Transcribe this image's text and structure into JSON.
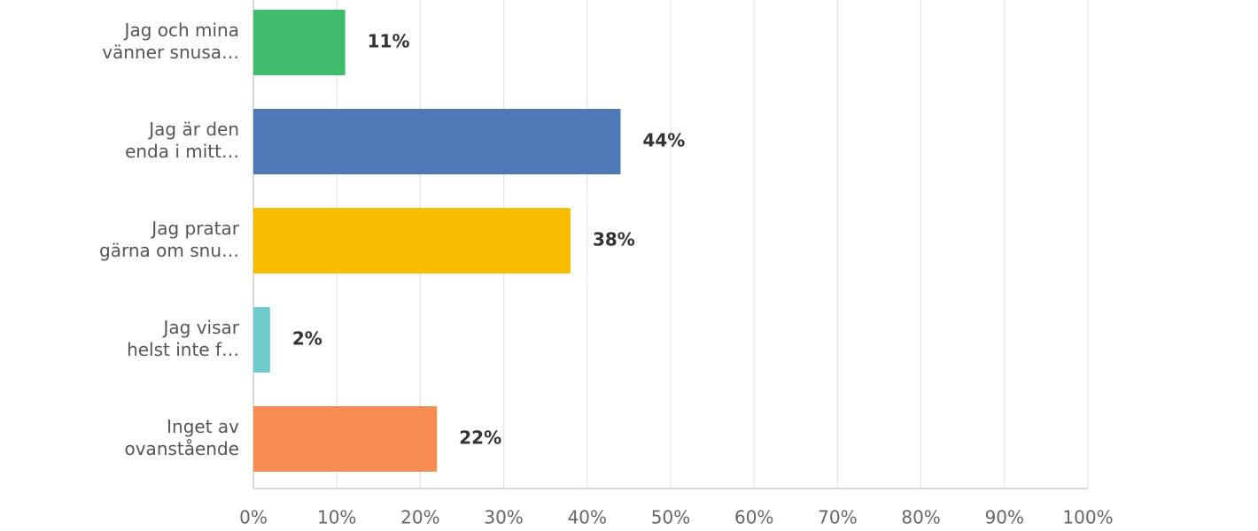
{
  "chart_data": {
    "type": "hbar",
    "categories": [
      [
        "Jag och mina",
        "vänner snusa…"
      ],
      [
        "Jag är den",
        "enda i mitt…"
      ],
      [
        "Jag pratar",
        "gärna om snu…"
      ],
      [
        "Jag visar",
        "helst inte f…"
      ],
      [
        "Inget av",
        "ovanstående"
      ]
    ],
    "values": [
      11,
      44,
      38,
      2,
      22
    ],
    "value_labels": [
      "11%",
      "44%",
      "38%",
      "2%",
      "22%"
    ],
    "colors": [
      "#3fbd6c",
      "#4e79b7",
      "#f7be00",
      "#6ecacb",
      "#f78d52"
    ],
    "xlim": [
      0,
      100
    ],
    "xticks": [
      {
        "value": 0,
        "label": "0%"
      },
      {
        "value": 10,
        "label": "10%"
      },
      {
        "value": 20,
        "label": "20%"
      },
      {
        "value": 30,
        "label": "30%"
      },
      {
        "value": 40,
        "label": "40%"
      },
      {
        "value": 50,
        "label": "50%"
      },
      {
        "value": 60,
        "label": "60%"
      },
      {
        "value": 70,
        "label": "70%"
      },
      {
        "value": 80,
        "label": "80%"
      },
      {
        "value": 90,
        "label": "90%"
      },
      {
        "value": 100,
        "label": "100%"
      }
    ],
    "grid": true
  }
}
